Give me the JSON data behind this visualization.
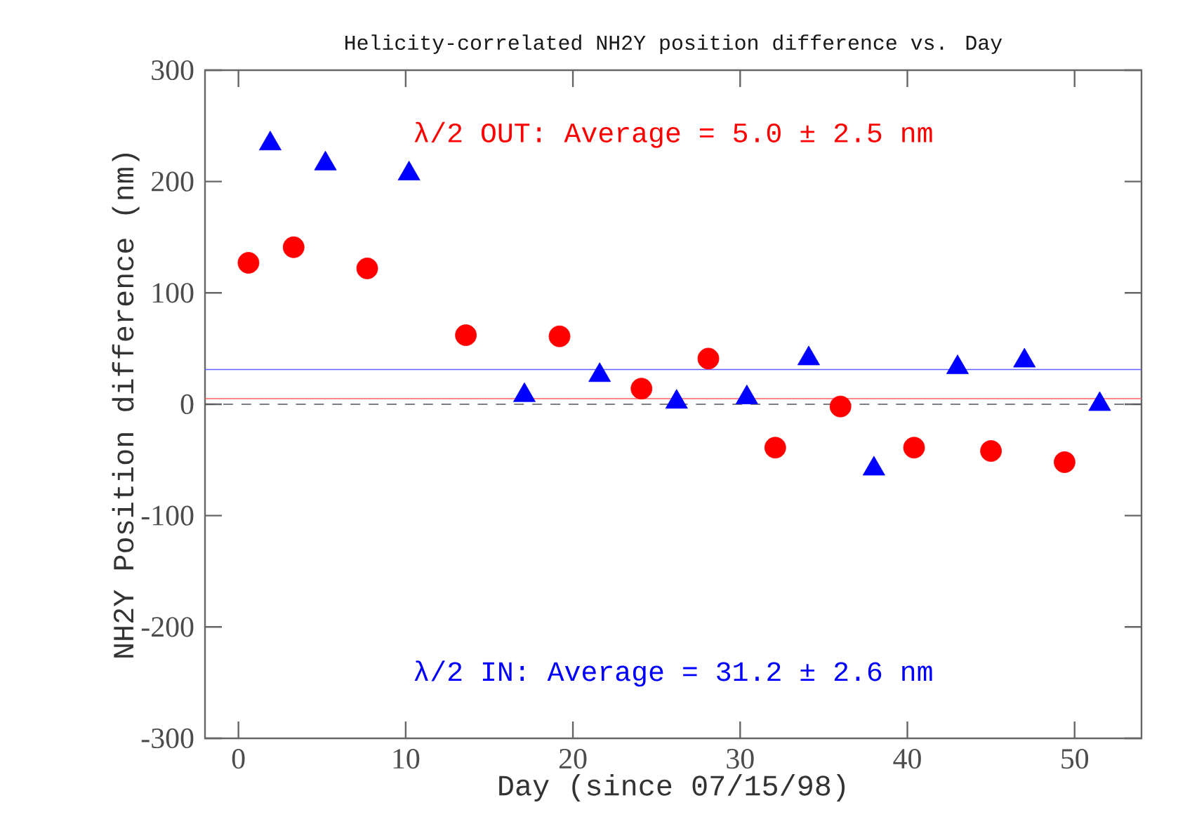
{
  "chart_data": {
    "type": "scatter",
    "title": "Helicity-correlated NH2Y position difference vs. Day",
    "xlabel": "Day (since 07/15/98)",
    "ylabel": "NH2Y Position difference (nm)",
    "xlim": [
      -2,
      54
    ],
    "ylim": [
      -300,
      300
    ],
    "xticks": [
      0,
      10,
      20,
      30,
      40,
      50
    ],
    "yticks": [
      -300,
      -200,
      -100,
      0,
      100,
      200,
      300
    ],
    "grid": false,
    "series": [
      {
        "color": "#ff0000",
        "marker": "circle",
        "x": [
          0.6,
          3.3,
          7.7,
          13.6,
          19.2,
          24.1,
          28.1,
          32.1,
          36.0,
          40.4,
          45.0,
          49.4
        ],
        "values": [
          127,
          141,
          122,
          62,
          61,
          14,
          41,
          -39,
          -2,
          -39,
          -42,
          -52
        ]
      },
      {
        "color": "#0000ff",
        "marker": "triangle",
        "x": [
          1.9,
          5.2,
          10.2,
          17.1,
          21.6,
          26.2,
          30.4,
          34.1,
          38.0,
          43.0,
          47.0,
          51.5
        ],
        "values": [
          234,
          216,
          207,
          8,
          26,
          2,
          6,
          41,
          -58,
          33,
          39,
          0
        ]
      }
    ],
    "ref_lines": [
      {
        "axis": "y",
        "value": 5.0,
        "color": "#ff6060"
      },
      {
        "axis": "y",
        "value": 31.2,
        "color": "#6060ff"
      },
      {
        "axis": "y",
        "value": 0,
        "color": "#555555",
        "line_style": "dashed"
      }
    ],
    "annotations": [
      "λ/2 OUT: Average =  5.0 ± 2.5 nm",
      "λ/2 IN: Average = 31.2 ± 2.6 nm"
    ]
  }
}
